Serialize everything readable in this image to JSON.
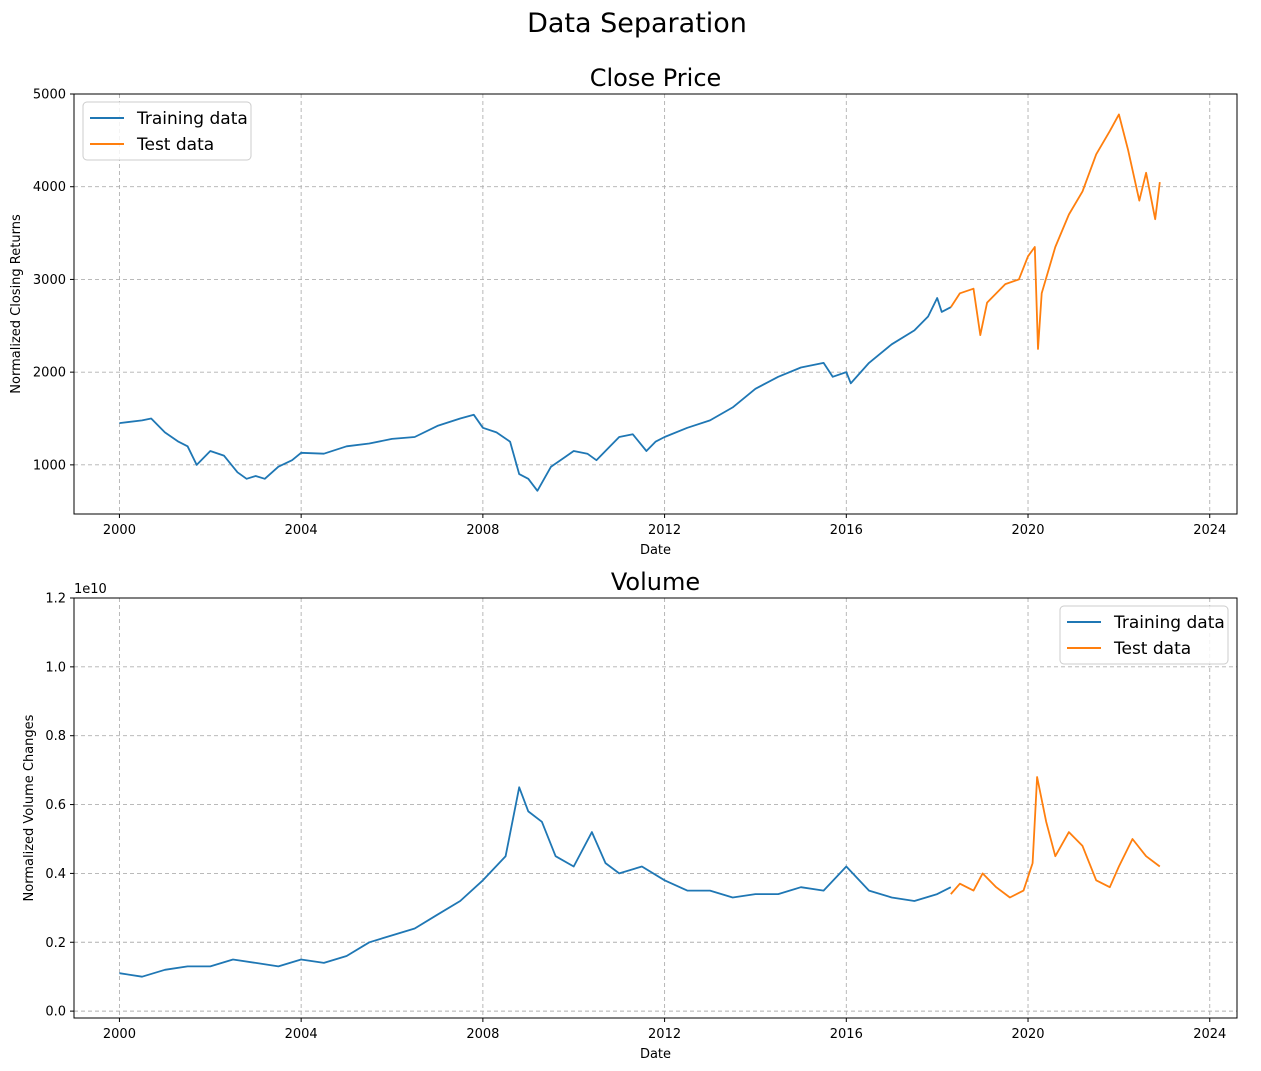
{
  "figure": {
    "suptitle": "Data Separation",
    "colors": {
      "training": "#1f77b4",
      "test": "#ff7f0e",
      "grid": "#b0b0b0"
    }
  },
  "chart_data": [
    {
      "type": "line",
      "title": "Close Price",
      "xlabel": "Date",
      "ylabel": "Normalized Closing Returns",
      "x_tick_labels": [
        "2000",
        "2004",
        "2008",
        "2012",
        "2016",
        "2020",
        "2024"
      ],
      "y_tick_labels": [
        "1000",
        "2000",
        "3000",
        "4000",
        "5000"
      ],
      "y_ticks": [
        1000,
        2000,
        3000,
        4000,
        5000
      ],
      "xlim": [
        1999.0,
        2024.6
      ],
      "ylim": [
        470,
        5000
      ],
      "grid": true,
      "legend_position": "upper left",
      "series": [
        {
          "name": "Training data",
          "color": "#1f77b4",
          "x": [
            2000.0,
            2000.5,
            2000.7,
            2001.0,
            2001.3,
            2001.5,
            2001.7,
            2002.0,
            2002.3,
            2002.6,
            2002.8,
            2003.0,
            2003.2,
            2003.5,
            2003.8,
            2004.0,
            2004.5,
            2005.0,
            2005.5,
            2006.0,
            2006.5,
            2007.0,
            2007.5,
            2007.8,
            2008.0,
            2008.3,
            2008.6,
            2008.8,
            2009.0,
            2009.2,
            2009.5,
            2009.8,
            2010.0,
            2010.3,
            2010.5,
            2010.8,
            2011.0,
            2011.3,
            2011.6,
            2011.8,
            2012.0,
            2012.5,
            2013.0,
            2013.5,
            2014.0,
            2014.5,
            2015.0,
            2015.5,
            2015.7,
            2016.0,
            2016.1,
            2016.5,
            2017.0,
            2017.5,
            2017.8,
            2018.0,
            2018.1,
            2018.3
          ],
          "y": [
            1450,
            1480,
            1500,
            1350,
            1250,
            1200,
            1000,
            1150,
            1100,
            920,
            850,
            880,
            850,
            980,
            1050,
            1130,
            1120,
            1200,
            1230,
            1280,
            1300,
            1420,
            1500,
            1540,
            1400,
            1350,
            1250,
            900,
            850,
            720,
            980,
            1080,
            1150,
            1120,
            1050,
            1200,
            1300,
            1330,
            1150,
            1250,
            1300,
            1400,
            1480,
            1620,
            1820,
            1950,
            2050,
            2100,
            1950,
            2000,
            1880,
            2100,
            2300,
            2450,
            2600,
            2800,
            2650,
            2700
          ]
        },
        {
          "name": "Test data",
          "color": "#ff7f0e",
          "x": [
            2018.3,
            2018.5,
            2018.8,
            2018.95,
            2019.1,
            2019.5,
            2019.8,
            2020.0,
            2020.15,
            2020.22,
            2020.3,
            2020.6,
            2020.9,
            2021.2,
            2021.5,
            2021.8,
            2022.0,
            2022.2,
            2022.45,
            2022.6,
            2022.8,
            2022.9
          ],
          "y": [
            2700,
            2850,
            2900,
            2400,
            2750,
            2950,
            3000,
            3250,
            3350,
            2250,
            2850,
            3350,
            3700,
            3950,
            4350,
            4600,
            4780,
            4400,
            3850,
            4150,
            3650,
            4050
          ]
        }
      ]
    },
    {
      "type": "line",
      "title": "Volume",
      "xlabel": "Date",
      "ylabel": "Normalized Volume Changes",
      "y_scale_label": "1e10",
      "x_tick_labels": [
        "2000",
        "2004",
        "2008",
        "2012",
        "2016",
        "2020",
        "2024"
      ],
      "y_tick_labels": [
        "0.0",
        "0.2",
        "0.4",
        "0.6",
        "0.8",
        "1.0",
        "1.2"
      ],
      "y_ticks": [
        0,
        2000000000,
        4000000000,
        6000000000,
        8000000000,
        10000000000,
        12000000000
      ],
      "xlim": [
        1999.0,
        2024.6
      ],
      "ylim": [
        -200000000,
        12000000000
      ],
      "grid": true,
      "legend_position": "upper right",
      "series": [
        {
          "name": "Training data",
          "color": "#1f77b4",
          "x": [
            2000.0,
            2000.5,
            2001.0,
            2001.5,
            2002.0,
            2002.5,
            2003.0,
            2003.5,
            2004.0,
            2004.5,
            2005.0,
            2005.5,
            2006.0,
            2006.5,
            2007.0,
            2007.5,
            2008.0,
            2008.5,
            2008.8,
            2009.0,
            2009.3,
            2009.6,
            2010.0,
            2010.4,
            2010.7,
            2011.0,
            2011.5,
            2012.0,
            2012.5,
            2013.0,
            2013.5,
            2014.0,
            2014.5,
            2015.0,
            2015.5,
            2016.0,
            2016.5,
            2017.0,
            2017.5,
            2018.0,
            2018.3
          ],
          "y": [
            1100000000,
            1000000000,
            1200000000,
            1300000000,
            1300000000,
            1500000000,
            1400000000,
            1300000000,
            1500000000,
            1400000000,
            1600000000,
            2000000000,
            2200000000,
            2400000000,
            2800000000,
            3200000000,
            3800000000,
            4500000000,
            6500000000,
            5800000000,
            5500000000,
            4500000000,
            4200000000,
            5200000000,
            4300000000,
            4000000000,
            4200000000,
            3800000000,
            3500000000,
            3500000000,
            3300000000,
            3400000000,
            3400000000,
            3600000000,
            3500000000,
            4200000000,
            3500000000,
            3300000000,
            3200000000,
            3400000000,
            3600000000
          ]
        },
        {
          "name": "Test data",
          "color": "#ff7f0e",
          "x": [
            2018.3,
            2018.5,
            2018.8,
            2019.0,
            2019.3,
            2019.6,
            2019.9,
            2020.1,
            2020.2,
            2020.4,
            2020.6,
            2020.9,
            2021.2,
            2021.5,
            2021.8,
            2022.0,
            2022.3,
            2022.6,
            2022.9
          ],
          "y": [
            3400000000,
            3700000000,
            3500000000,
            4000000000,
            3600000000,
            3300000000,
            3500000000,
            4300000000,
            6800000000,
            5500000000,
            4500000000,
            5200000000,
            4800000000,
            3800000000,
            3600000000,
            4200000000,
            5000000000,
            4500000000,
            4200000000
          ]
        }
      ]
    }
  ]
}
